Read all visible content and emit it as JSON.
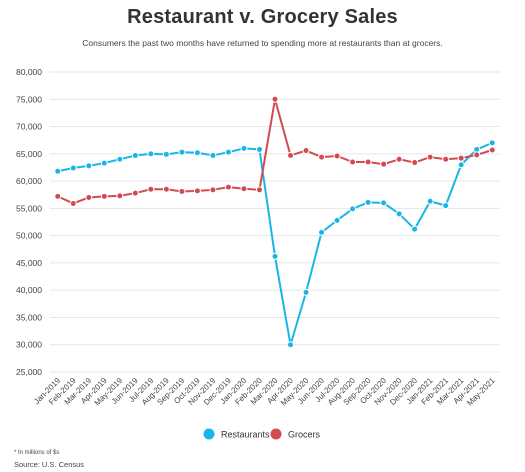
{
  "title": "Restaurant v. Grocery Sales",
  "subtitle": "Consumers the past two months have returned to spending more at restaurants than at grocers.",
  "note": "* In millions of $s",
  "source": "Source: U.S. Census",
  "colors": {
    "restaurants": "#18b6e6",
    "grocers": "#d24b4f",
    "grid": "#e6e6e6",
    "axis_text": "#444444"
  },
  "chart_data": {
    "type": "line",
    "title": "Restaurant v. Grocery Sales",
    "xlabel": "",
    "ylabel": "",
    "ylim": [
      25000,
      80000
    ],
    "yticks": [
      25000,
      30000,
      35000,
      40000,
      45000,
      50000,
      55000,
      60000,
      65000,
      70000,
      75000,
      80000
    ],
    "ytick_labels": [
      "25,000",
      "30,000",
      "35,000",
      "40,000",
      "45,000",
      "50,000",
      "55,000",
      "60,000",
      "65,000",
      "70,000",
      "75,000",
      "80,000"
    ],
    "grid": "horizontal",
    "legend_position": "bottom",
    "categories": [
      "Jan-2019",
      "Feb-2019",
      "Mar-2019",
      "Apr-2019",
      "May-2019",
      "Jun-2019",
      "Jul-2019",
      "Aug-2019",
      "Sep-2019",
      "Oct-2019",
      "Nov-2019",
      "Dec-2019",
      "Jan-2020",
      "Feb-2020",
      "Mar-2020",
      "Apr-2020",
      "May-2020",
      "Jun-2020",
      "Jul-2020",
      "Aug-2020",
      "Sep-2020",
      "Oct-2020",
      "Nov-2020",
      "Dec-2020",
      "Jan-2021",
      "Feb-2021",
      "Mar-2021",
      "Apr-2021",
      "May-2021"
    ],
    "series": [
      {
        "name": "Restaurants",
        "color": "#18b6e6",
        "values": [
          61800,
          62400,
          62800,
          63300,
          64000,
          64700,
          65000,
          64900,
          65300,
          65200,
          64700,
          65300,
          66000,
          65800,
          46200,
          30000,
          39600,
          50600,
          52800,
          54900,
          56100,
          56000,
          54000,
          51200,
          56300,
          55500,
          63000,
          65800,
          67000
        ]
      },
      {
        "name": "Grocers",
        "color": "#d24b4f",
        "values": [
          57200,
          55900,
          57000,
          57200,
          57300,
          57800,
          58500,
          58500,
          58100,
          58200,
          58400,
          58900,
          58600,
          58400,
          75000,
          64700,
          65600,
          64400,
          64600,
          63500,
          63500,
          63100,
          64000,
          63400,
          64400,
          64000,
          64200,
          64800,
          65700
        ]
      }
    ]
  }
}
